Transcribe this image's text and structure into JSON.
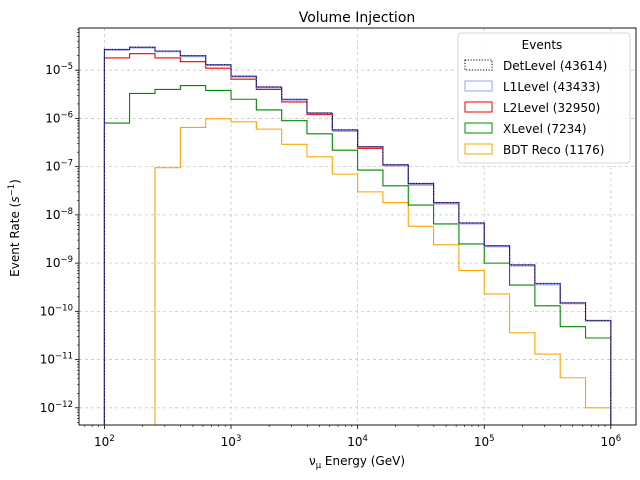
{
  "chart_data": {
    "type": "step",
    "title": "Volume Injection",
    "xlabel": "ν_μ Energy (GeV)",
    "ylabel": "Event Rate (s^-1)",
    "xscale": "log",
    "yscale": "log",
    "xlim": [
      63,
      1580000
    ],
    "ylim": [
      4.4e-13,
      7.5e-05
    ],
    "grid": true,
    "legend": {
      "title": "Events",
      "placement": "top-right"
    },
    "x_ticks": [
      "10^2",
      "10^3",
      "10^4",
      "10^5",
      "10^6"
    ],
    "y_ticks": [
      "10^-12",
      "10^-11",
      "10^-10",
      "10^-9",
      "10^-8",
      "10^-7",
      "10^-6",
      "10^-5"
    ],
    "bin_edges": [
      100,
      158,
      251,
      398,
      631,
      1000,
      1585,
      2512,
      3981,
      6310,
      10000,
      15849,
      25119,
      39811,
      63096,
      100000,
      158489,
      251189,
      398107,
      630957,
      1000000
    ],
    "series": [
      {
        "name": "DetLevel (43614)",
        "color": "#000000",
        "style": "dotted",
        "values": [
          2.7e-05,
          3e-05,
          2.5e-05,
          2e-05,
          1.3e-05,
          7.5e-06,
          4.5e-06,
          2.5e-06,
          1.3e-06,
          5.8e-07,
          2.6e-07,
          1.1e-07,
          4.5e-08,
          1.8e-08,
          6.8e-09,
          2.3e-09,
          9.2e-10,
          3.8e-10,
          1.5e-10,
          6.5e-11
        ]
      },
      {
        "name": "L1Level (43433)",
        "color": "#9c9cff",
        "style": "solid",
        "values": [
          2.6e-05,
          2.9e-05,
          2.4e-05,
          1.9e-05,
          1.25e-05,
          7.2e-06,
          4.3e-06,
          2.4e-06,
          1.25e-06,
          5.6e-07,
          2.5e-07,
          1.05e-07,
          4.3e-08,
          1.7e-08,
          6.5e-09,
          2.2e-09,
          8.8e-10,
          3.6e-10,
          1.45e-10,
          6.3e-11
        ]
      },
      {
        "name": "L2Level (32950)",
        "color": "#ee0000",
        "style": "solid",
        "values": [
          1.8e-05,
          2.2e-05,
          1.8e-05,
          1.5e-05,
          1.1e-05,
          6.5e-06,
          4e-06,
          2.2e-06,
          1.2e-06,
          5.5e-07,
          2.4e-07,
          1.05e-07,
          4.2e-08,
          1.7e-08,
          6.5e-09,
          2.2e-09,
          8.8e-10,
          3.6e-10,
          1.45e-10,
          6.3e-11
        ]
      },
      {
        "name": "XLevel (7234)",
        "color": "#008800",
        "style": "solid",
        "values": [
          8e-07,
          3.3e-06,
          4e-06,
          4.8e-06,
          3.8e-06,
          2.5e-06,
          1.5e-06,
          9e-07,
          4.8e-07,
          2.2e-07,
          8.5e-08,
          4e-08,
          1.6e-08,
          6.5e-09,
          2.5e-09,
          1e-09,
          3.5e-10,
          1.3e-10,
          4.8e-11,
          2.8e-11
        ]
      },
      {
        "name": "BDT Reco (1176)",
        "color": "#ffa500",
        "style": "solid",
        "values": [
          null,
          null,
          9.5e-08,
          6.5e-07,
          9.8e-07,
          8.5e-07,
          6e-07,
          2.9e-07,
          1.6e-07,
          7e-08,
          3e-08,
          1.8e-08,
          5.8e-09,
          2.4e-09,
          7e-10,
          2.3e-10,
          3.6e-11,
          1.3e-11,
          4.2e-12,
          1e-12
        ]
      }
    ]
  }
}
